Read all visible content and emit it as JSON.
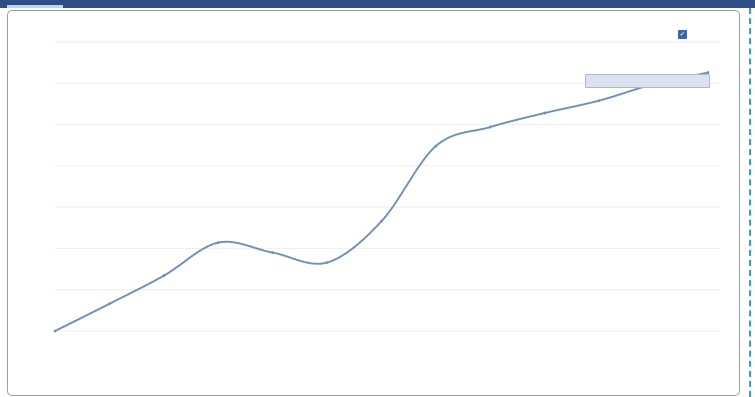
{
  "legend": {
    "label": "",
    "checked_glyph": "✓",
    "color": "#3d64a4"
  },
  "tooltip": {
    "text": ""
  },
  "chart_data": {
    "type": "line",
    "title": "",
    "xlabel": "",
    "ylabel": "",
    "legend_position": "top-right",
    "grid": true,
    "x": [
      1960,
      1965,
      1970,
      1975,
      1980,
      1985,
      1990,
      1995,
      2000,
      2005,
      2010,
      2015,
      2020
    ],
    "x_tick_labels": [
      "",
      "",
      "",
      "",
      "",
      "",
      "",
      "",
      "",
      "",
      "",
      "",
      ""
    ],
    "xlim": [
      1960,
      2020
    ],
    "ylim": [
      0,
      35
    ],
    "y_ticks": [
      0,
      5,
      10,
      15,
      20,
      25,
      30,
      35
    ],
    "y_tick_labels": [
      "",
      "",
      "",
      "",
      "",
      "",
      "",
      ""
    ],
    "series": [
      {
        "color": "#6f8fb8",
        "values": [
          0,
          3.3,
          6.7,
          10.7,
          9.5,
          8.3,
          13.3,
          22.4,
          24.7,
          26.4,
          27.9,
          29.9,
          31.3
        ]
      }
    ]
  }
}
